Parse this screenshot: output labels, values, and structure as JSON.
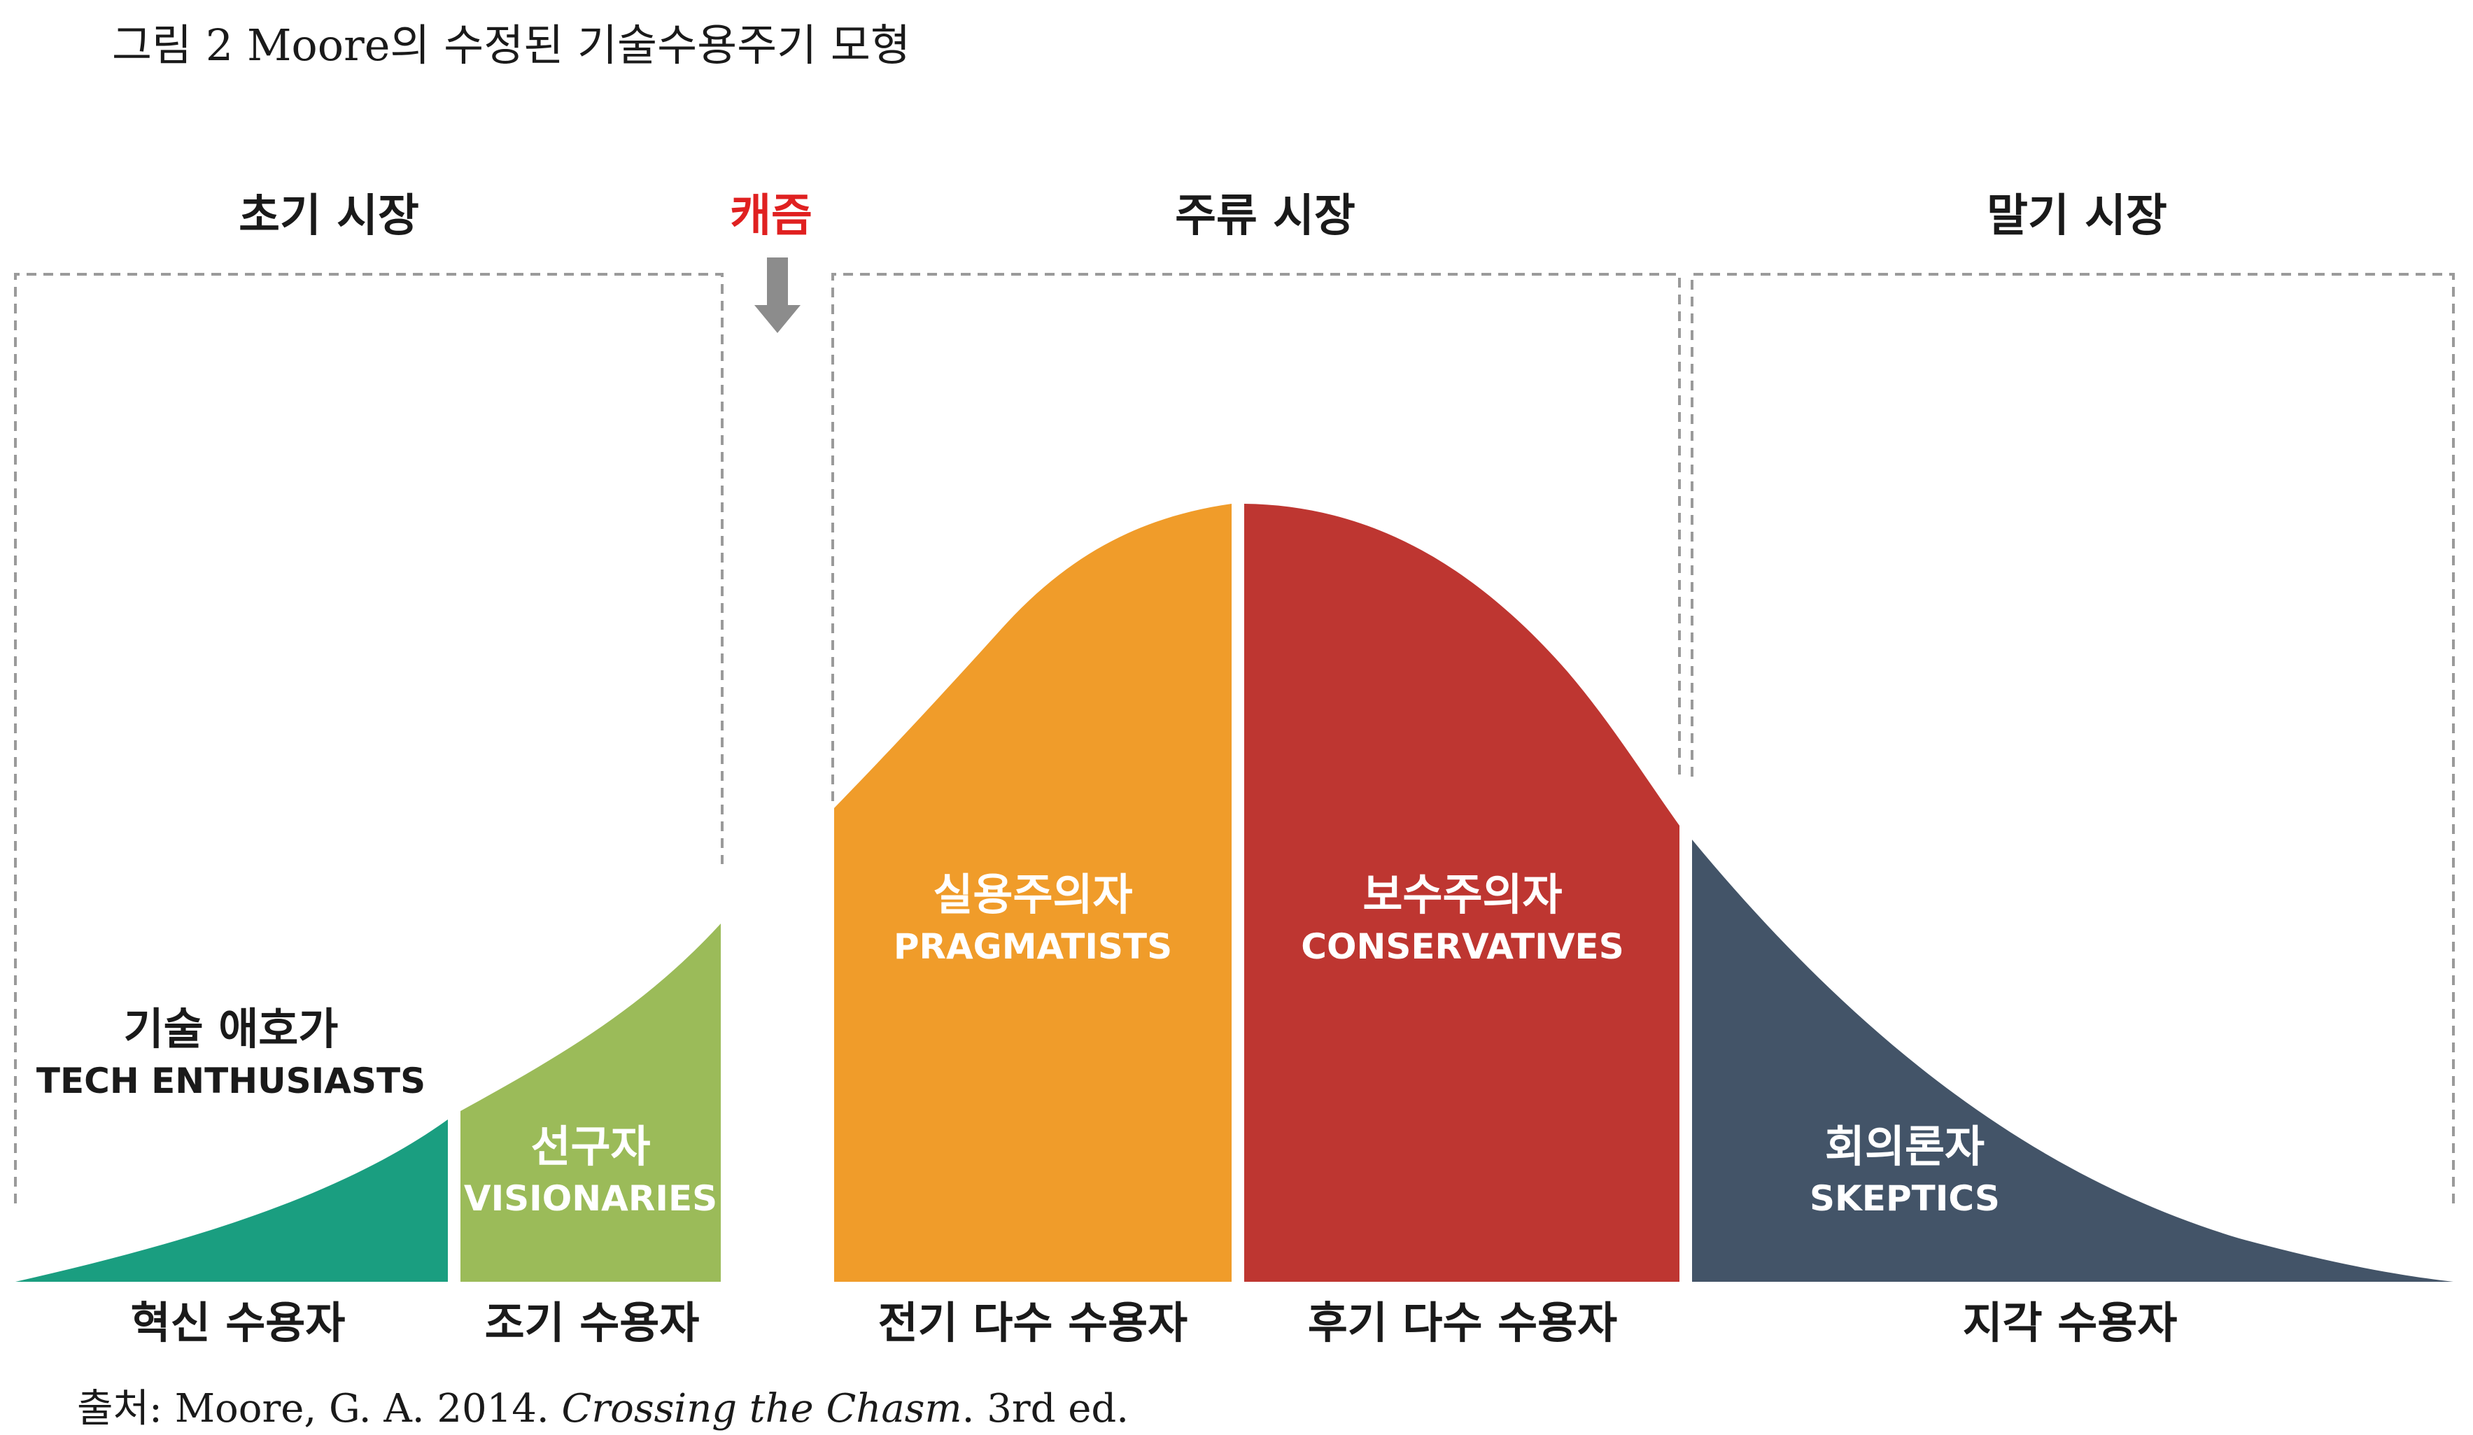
{
  "title": "그림 2 Moore의 수정된 기술수용주기 모형",
  "markets": {
    "early": "초기 시장",
    "chasm": "캐즘",
    "mainstream": "주류 시장",
    "late": "말기 시장"
  },
  "segments": {
    "innovators": {
      "kr": "기술 애호가",
      "en": "TECH ENTHUSIASTS",
      "adopter": "혁신 수용자",
      "color": "#1a9e80"
    },
    "early_adopters": {
      "kr": "선구자",
      "en": "VISIONARIES",
      "adopter": "조기 수용자",
      "color": "#9bbb59"
    },
    "early_majority": {
      "kr": "실용주의자",
      "en": "PRAGMATISTS",
      "adopter": "전기 다수 수용자",
      "color": "#f09c2a"
    },
    "late_majority": {
      "kr": "보수주의자",
      "en": "CONSERVATIVES",
      "adopter": "후기 다수 수용자",
      "color": "#be3631"
    },
    "laggards": {
      "kr": "회의론자",
      "en": "SKEPTICS",
      "adopter": "지각 수용자",
      "color": "#435468"
    }
  },
  "source": {
    "prefix": "출처: Moore, G. A. 2014. ",
    "book": "Crossing the Chasm",
    "suffix": ". 3rd ed."
  }
}
